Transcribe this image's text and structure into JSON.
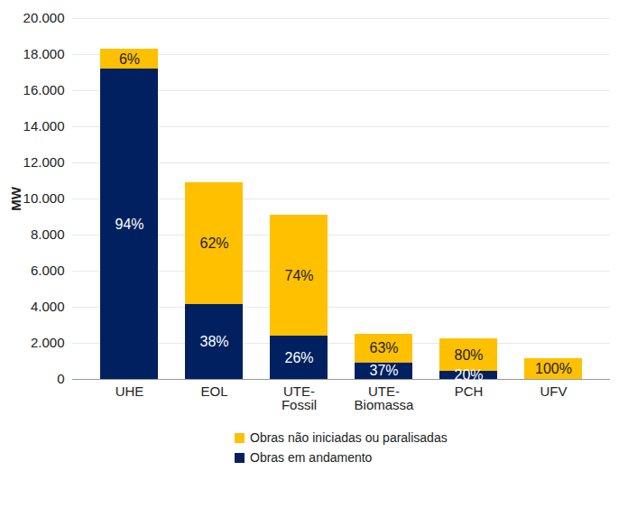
{
  "chart_data": {
    "type": "bar",
    "stacked": true,
    "categories": [
      "UHE",
      "EOL",
      "UTE-Fossil",
      "UTE-Biomassa",
      "PCH",
      "UFV"
    ],
    "y_label": "MW",
    "ylim": [
      0,
      20000
    ],
    "yticks": [
      {
        "value": 0,
        "label": "0"
      },
      {
        "value": 2000,
        "label": "2.000"
      },
      {
        "value": 4000,
        "label": "4.000"
      },
      {
        "value": 6000,
        "label": "6.000"
      },
      {
        "value": 8000,
        "label": "8.000"
      },
      {
        "value": 10000,
        "label": "10.000"
      },
      {
        "value": 12000,
        "label": "12.000"
      },
      {
        "value": 14000,
        "label": "14.000"
      },
      {
        "value": 16000,
        "label": "16.000"
      },
      {
        "value": 18000,
        "label": "18.000"
      },
      {
        "value": 20000,
        "label": "20.000"
      }
    ],
    "grid": true,
    "legend": "bottom",
    "series": [
      {
        "name": "Obras não iniciadas ou paralisadas",
        "color": "#ffc000",
        "values": [
          1100,
          6750,
          6700,
          1580,
          1800,
          1150
        ],
        "share_labels": [
          "6%",
          "62%",
          "74%",
          "63%",
          "80%",
          "100%"
        ]
      },
      {
        "name": "Obras em andamento",
        "color": "#002060",
        "values": [
          17200,
          4150,
          2400,
          920,
          450,
          0
        ],
        "share_labels": [
          "94%",
          "38%",
          "26%",
          "37%",
          "20%",
          null
        ]
      }
    ]
  }
}
